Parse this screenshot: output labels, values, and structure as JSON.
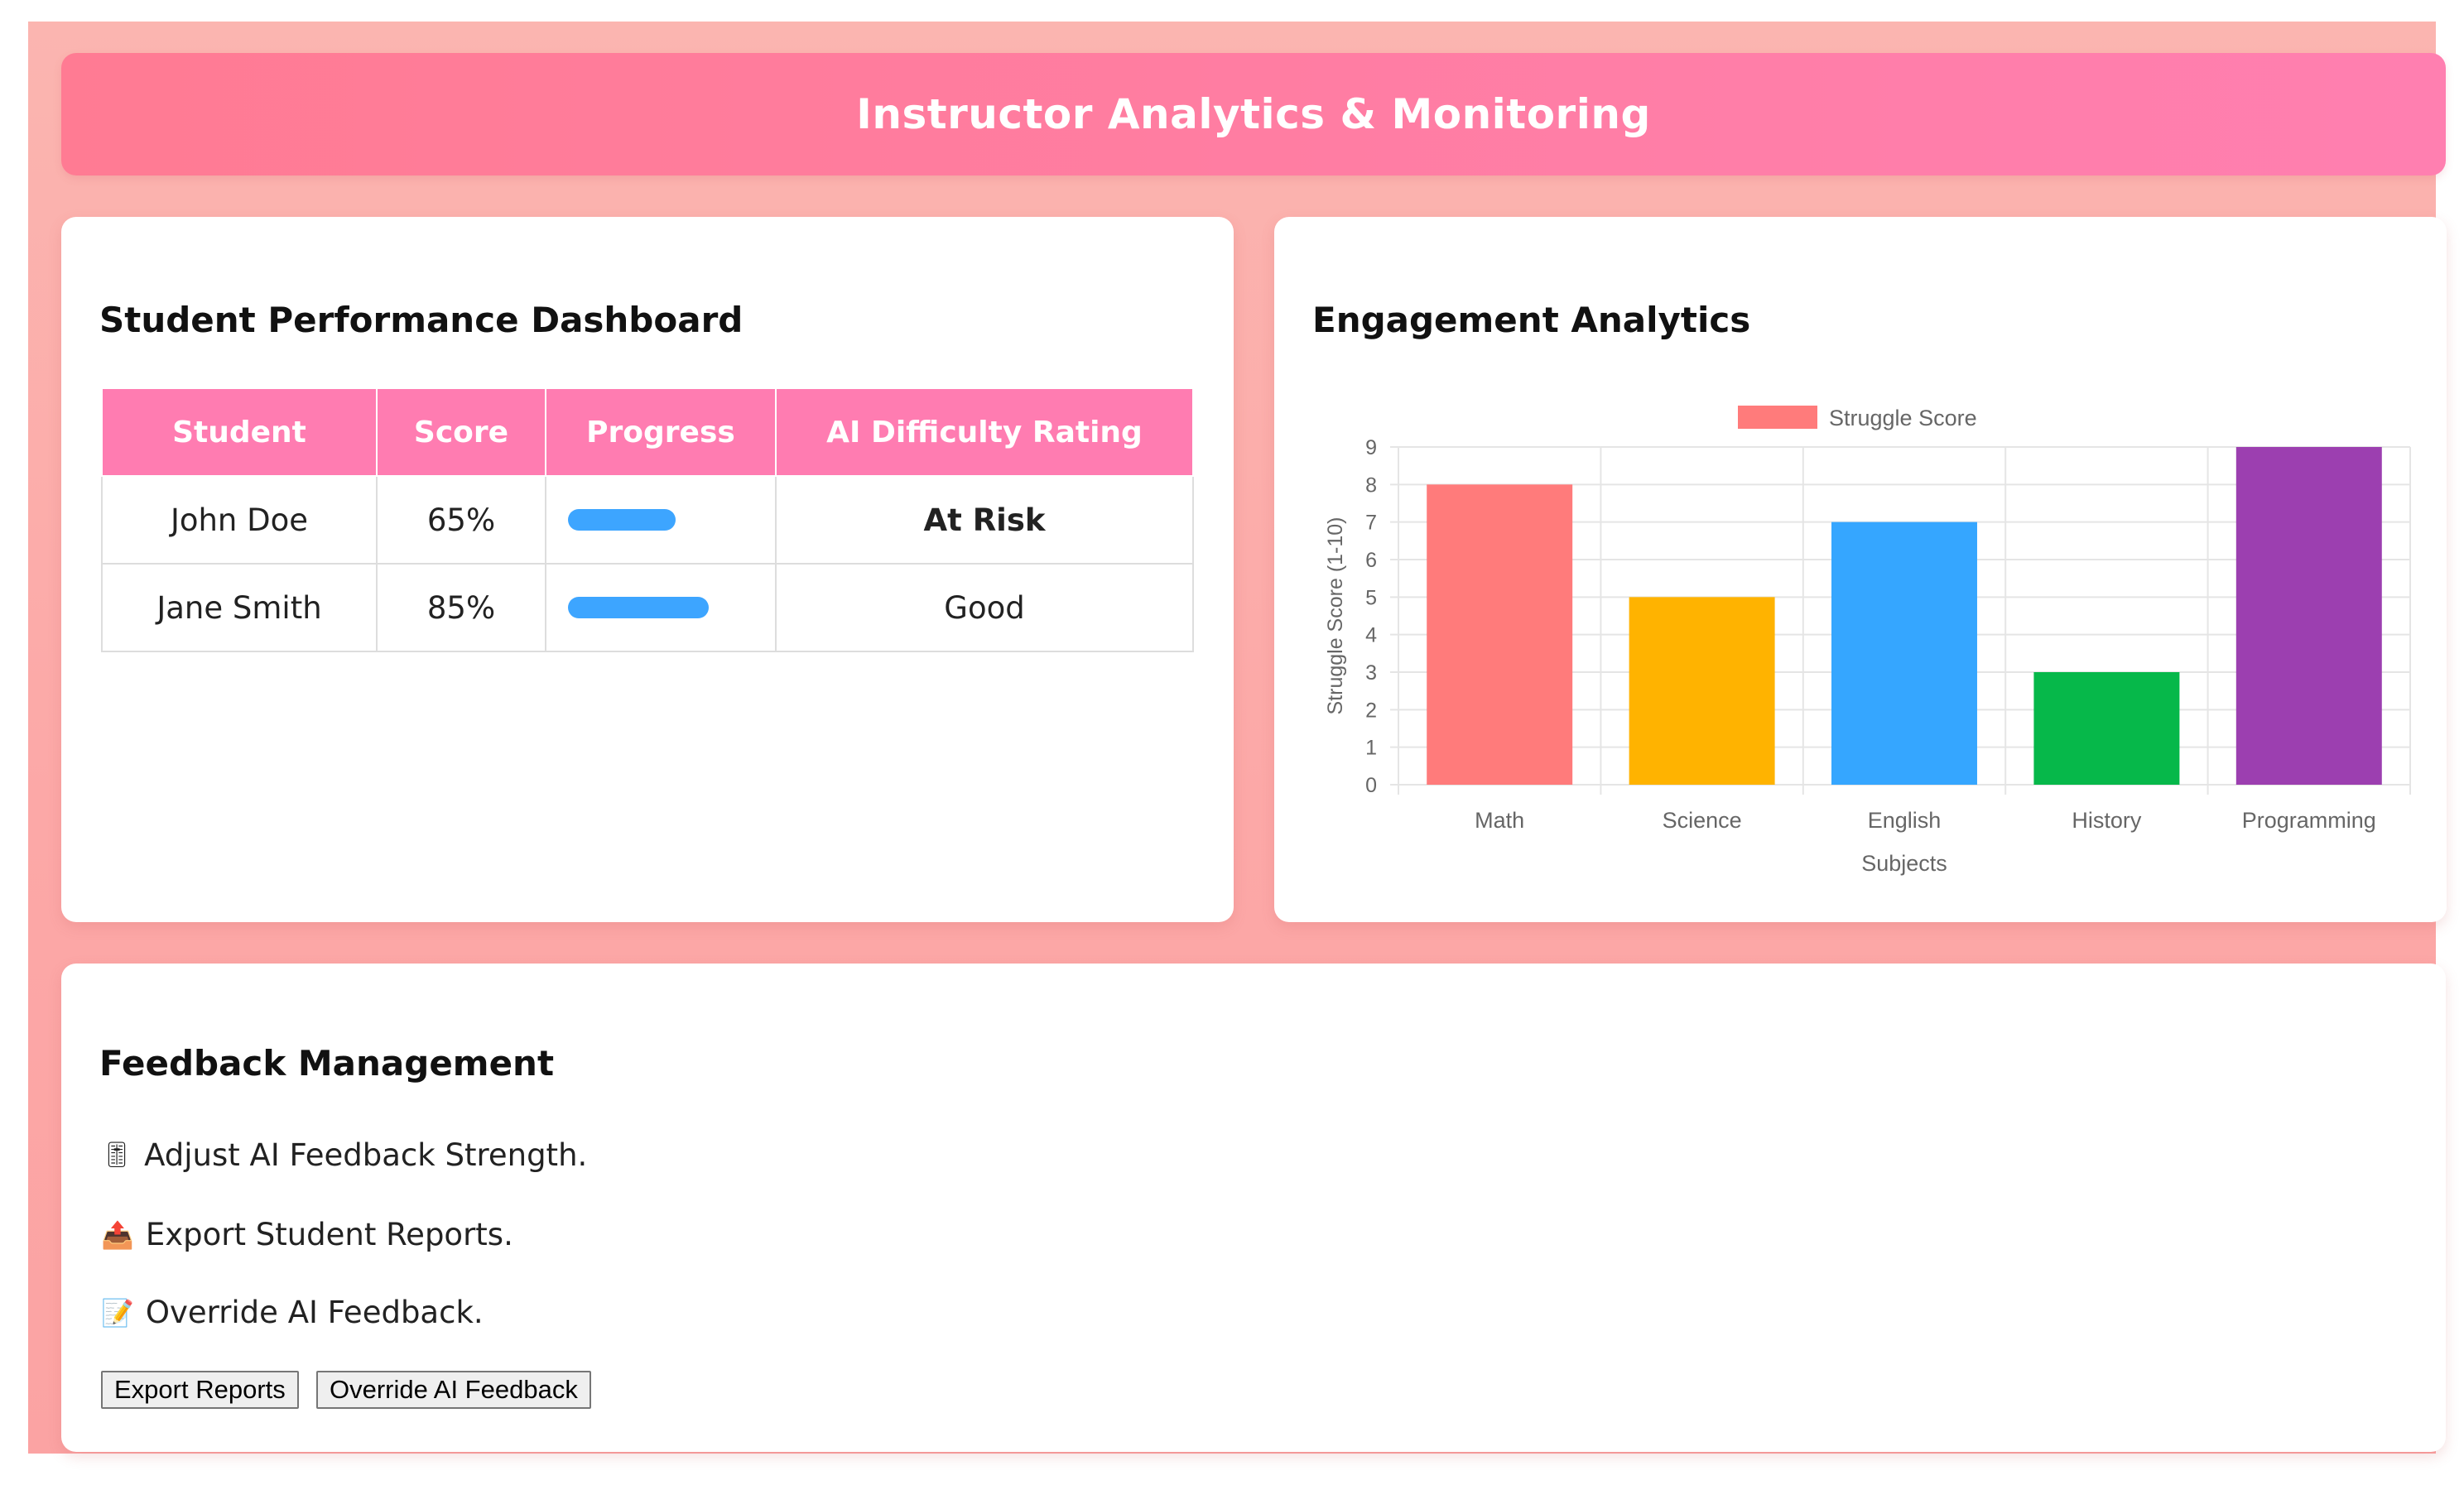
{
  "header": {
    "title": "Instructor Analytics & Monitoring"
  },
  "performance": {
    "title": "Student Performance Dashboard",
    "columns": [
      "Student",
      "Score",
      "Progress",
      "AI Difficulty Rating"
    ],
    "rows": [
      {
        "student": "John Doe",
        "score": "65%",
        "progress": 0.65,
        "rating": "At Risk",
        "rating_color": "#ff1a1a"
      },
      {
        "student": "Jane Smith",
        "score": "85%",
        "progress": 0.85,
        "rating": "Good",
        "rating_color": "#222222"
      }
    ],
    "progress_color": "#3da5ff",
    "header_color": "#ff7cb1"
  },
  "engagement": {
    "title": "Engagement Analytics"
  },
  "chart_data": {
    "type": "bar",
    "categories": [
      "Math",
      "Science",
      "English",
      "History",
      "Programming"
    ],
    "values": [
      8,
      5,
      7,
      3,
      9
    ],
    "colors": [
      "#ff7b7b",
      "#ffb300",
      "#35a6ff",
      "#06b84a",
      "#9c3fb0"
    ],
    "legend": {
      "label": "Struggle Score",
      "color": "#ff7b7b",
      "position": "top"
    },
    "xlabel": "Subjects",
    "ylabel": "Struggle Score (1-10)",
    "ylim": [
      0,
      9
    ],
    "yticks": [
      0,
      1,
      2,
      3,
      4,
      5,
      6,
      7,
      8,
      9
    ],
    "grid": true
  },
  "feedback": {
    "title": "Feedback Management",
    "items": [
      {
        "icon": "slider-icon",
        "glyph": "🎚",
        "text": "Adjust AI Feedback Strength."
      },
      {
        "icon": "export-icon",
        "glyph": "📤",
        "text": "Export Student Reports."
      },
      {
        "icon": "pencil-memo-icon",
        "glyph": "📝",
        "text": "Override AI Feedback."
      }
    ],
    "buttons": {
      "export": "Export Reports",
      "override": "Override AI Feedback"
    }
  }
}
